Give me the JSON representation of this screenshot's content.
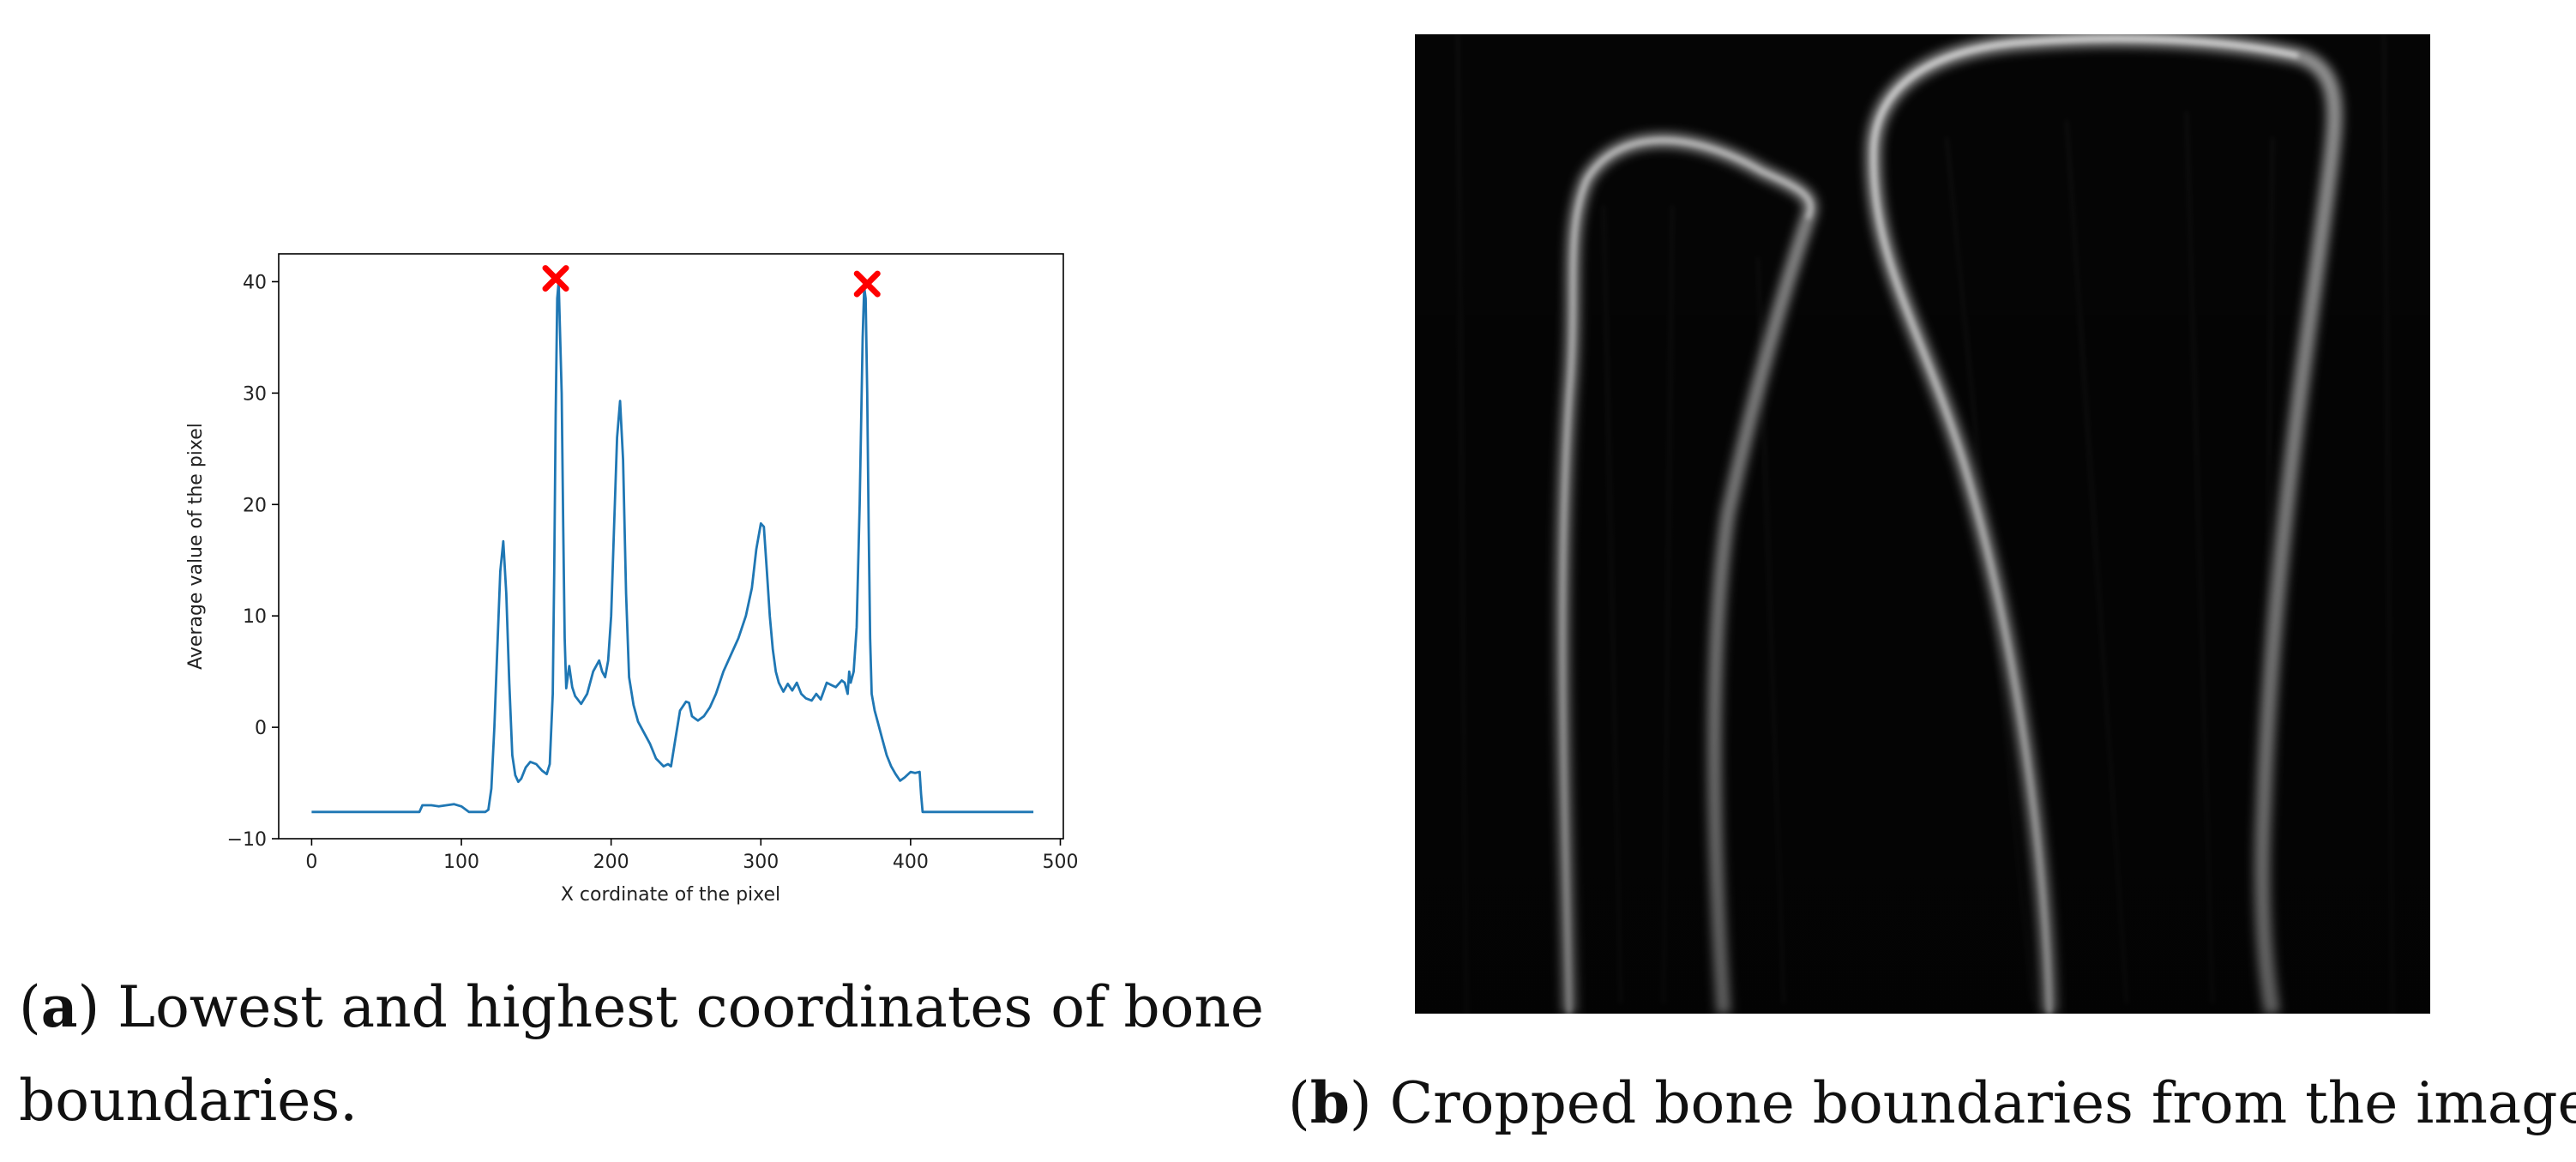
{
  "chart_data": {
    "type": "line",
    "xlabel": "X cordinate of the pixel",
    "ylabel": "Average value of the pixel",
    "xlim": [
      -22,
      502
    ],
    "ylim": [
      -10,
      42.5
    ],
    "xticks": [
      0,
      100,
      200,
      300,
      400,
      500
    ],
    "yticks": [
      -10,
      0,
      10,
      20,
      30,
      40
    ],
    "grid": false,
    "line_color": "#1f77b4",
    "marker_color": "#ff0000",
    "series": [
      {
        "x": [
          0,
          72,
          74,
          80,
          85,
          90,
          95,
          100,
          105,
          108,
          110,
          113,
          116,
          118,
          120,
          122,
          124,
          126,
          128,
          130,
          132,
          134,
          136,
          138,
          140,
          143,
          146,
          150,
          154,
          157,
          159,
          161,
          162,
          163,
          164,
          165,
          167,
          168,
          169,
          170,
          172,
          174,
          176,
          180,
          184,
          188,
          192,
          194,
          196,
          198,
          200,
          202,
          204,
          206,
          208,
          210,
          212,
          215,
          218,
          222,
          226,
          230,
          235,
          238,
          240,
          243,
          246,
          250,
          252,
          254,
          256,
          258,
          262,
          266,
          270,
          275,
          280,
          285,
          290,
          294,
          297,
          300,
          302,
          304,
          306,
          308,
          310,
          312,
          315,
          318,
          321,
          324,
          327,
          330,
          334,
          337,
          340,
          344,
          347,
          350,
          354,
          356,
          358,
          359,
          360,
          362,
          364,
          366,
          368,
          369,
          370,
          371,
          372,
          373,
          374,
          376,
          378,
          381,
          384,
          387,
          390,
          393,
          396,
          400,
          403,
          406,
          407,
          408,
          410,
          430,
          450,
          470,
          480,
          482
        ],
        "y": [
          -7.6,
          -7.6,
          -7.0,
          -7.0,
          -7.1,
          -7.0,
          -6.9,
          -7.1,
          -7.6,
          -7.6,
          -7.6,
          -7.6,
          -7.6,
          -7.4,
          -5.5,
          0.0,
          7.0,
          14.0,
          16.7,
          12.0,
          4.0,
          -2.5,
          -4.3,
          -4.9,
          -4.6,
          -3.6,
          -3.1,
          -3.3,
          -3.9,
          -4.2,
          -3.3,
          3.0,
          14.0,
          28.0,
          38.5,
          40.0,
          30.0,
          18.0,
          8.0,
          3.5,
          5.5,
          3.6,
          2.8,
          2.1,
          3.0,
          5.0,
          6.0,
          5.0,
          4.5,
          6.0,
          10.0,
          18.0,
          26.0,
          29.3,
          24.0,
          12.0,
          4.5,
          2.0,
          0.5,
          -0.5,
          -1.5,
          -2.8,
          -3.5,
          -3.3,
          -3.5,
          -1.0,
          1.5,
          2.3,
          2.2,
          1.0,
          0.8,
          0.6,
          1.0,
          1.8,
          3.0,
          5.0,
          6.5,
          8.0,
          10.0,
          12.5,
          16.0,
          18.3,
          18.0,
          14.0,
          10.0,
          7.0,
          5.0,
          4.0,
          3.2,
          3.9,
          3.3,
          4.0,
          3.0,
          2.6,
          2.4,
          3.0,
          2.5,
          4.0,
          3.8,
          3.6,
          4.2,
          4.0,
          3.0,
          5.0,
          4.0,
          5.0,
          9.0,
          20.0,
          35.0,
          39.5,
          38.5,
          30.0,
          18.0,
          8.0,
          3.0,
          1.5,
          0.5,
          -1.0,
          -2.5,
          -3.5,
          -4.2,
          -4.8,
          -4.5,
          -4.0,
          -4.1,
          -4.0,
          -6.0,
          -7.6,
          -7.6,
          -7.6,
          -7.6,
          -7.6,
          -7.6,
          -7.6
        ]
      }
    ],
    "markers": [
      {
        "x": 163,
        "y": 40.3
      },
      {
        "x": 371,
        "y": 39.8
      }
    ]
  },
  "captions": {
    "a_label": "a",
    "a_text": " Lowest and highest coordinates of bone boundaries.",
    "b_label": "b",
    "b_text": " Cropped bone boundaries from the image."
  }
}
